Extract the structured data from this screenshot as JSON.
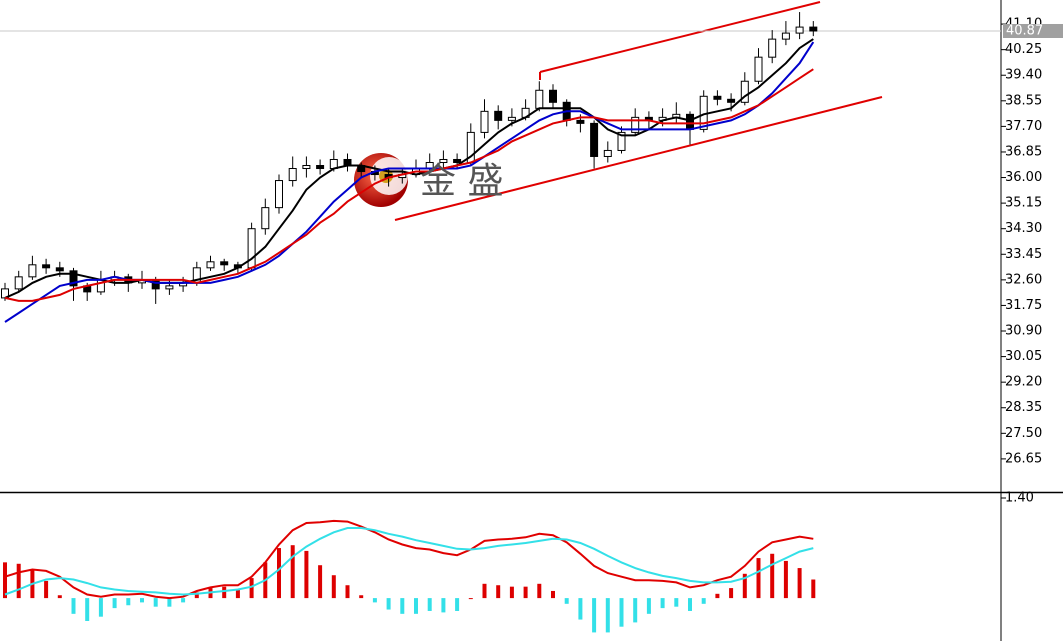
{
  "chart_data": [
    {
      "type": "candlestick",
      "open": [
        32.0,
        32.3,
        32.7,
        33.1,
        33.0,
        32.9,
        32.4,
        32.2,
        32.6,
        32.7,
        32.5,
        32.6,
        32.3,
        32.4,
        32.5,
        33.0,
        33.2,
        33.1,
        33.0,
        34.3,
        35.0,
        35.9,
        36.3,
        36.4,
        36.3,
        36.6,
        36.4,
        36.2,
        36.1,
        36.0,
        36.1,
        36.3,
        36.5,
        36.6,
        36.5,
        37.5,
        38.2,
        37.9,
        38.0,
        38.3,
        38.9,
        38.5,
        37.9,
        37.8,
        36.7,
        36.9,
        37.5,
        38.0,
        37.9,
        38.0,
        38.1,
        37.6,
        38.7,
        38.6,
        38.5,
        39.2,
        40.0,
        40.6,
        40.8,
        41.0
      ],
      "high": [
        32.5,
        32.9,
        33.4,
        33.3,
        33.2,
        33.0,
        32.5,
        32.9,
        32.9,
        32.8,
        32.9,
        32.7,
        32.6,
        32.7,
        33.2,
        33.4,
        33.3,
        33.2,
        34.5,
        35.3,
        36.1,
        36.7,
        36.7,
        36.6,
        36.9,
        36.8,
        36.5,
        36.4,
        36.3,
        36.3,
        36.6,
        36.8,
        36.9,
        36.8,
        37.8,
        38.6,
        38.4,
        38.3,
        38.6,
        39.2,
        39.1,
        38.6,
        38.1,
        37.9,
        37.2,
        37.7,
        38.3,
        38.2,
        38.3,
        38.5,
        38.2,
        38.9,
        38.9,
        38.8,
        39.5,
        40.3,
        40.9,
        41.2,
        41.5,
        41.2
      ],
      "low": [
        31.9,
        32.2,
        32.6,
        32.8,
        32.7,
        31.9,
        31.9,
        32.1,
        32.4,
        32.2,
        32.3,
        31.8,
        32.1,
        32.2,
        32.4,
        32.9,
        32.9,
        32.8,
        32.9,
        34.1,
        34.8,
        35.7,
        36.0,
        36.1,
        36.2,
        36.2,
        36.0,
        35.9,
        35.7,
        35.8,
        36.0,
        36.2,
        36.3,
        36.3,
        36.4,
        37.3,
        37.6,
        37.7,
        37.9,
        38.2,
        38.3,
        37.7,
        37.5,
        36.3,
        36.5,
        36.8,
        37.4,
        37.6,
        37.7,
        37.8,
        37.1,
        37.5,
        38.4,
        38.2,
        38.4,
        39.1,
        39.8,
        40.4,
        40.6,
        40.7
      ],
      "close": [
        32.3,
        32.7,
        33.1,
        33.0,
        32.9,
        32.4,
        32.2,
        32.6,
        32.7,
        32.5,
        32.6,
        32.3,
        32.4,
        32.5,
        33.0,
        33.2,
        33.1,
        33.0,
        34.3,
        35.0,
        35.9,
        36.3,
        36.4,
        36.3,
        36.6,
        36.4,
        36.2,
        36.1,
        36.0,
        36.1,
        36.3,
        36.5,
        36.6,
        36.5,
        37.5,
        38.2,
        37.9,
        38.0,
        38.3,
        38.9,
        38.5,
        37.9,
        37.8,
        36.7,
        36.9,
        37.5,
        38.0,
        37.9,
        38.0,
        38.1,
        37.6,
        38.7,
        38.6,
        38.5,
        39.2,
        40.0,
        40.6,
        40.8,
        41.0,
        40.87
      ],
      "up_color": "#ffffff",
      "down_color": "#000000",
      "candle_stroke": "#000000",
      "series": [
        {
          "color": "#000000",
          "values": [
            32.0,
            32.2,
            32.5,
            32.7,
            32.8,
            32.8,
            32.7,
            32.6,
            32.5,
            32.5,
            32.6,
            32.5,
            32.5,
            32.5,
            32.6,
            32.7,
            32.8,
            33.0,
            33.3,
            33.7,
            34.3,
            34.9,
            35.6,
            36.0,
            36.3,
            36.4,
            36.4,
            36.3,
            36.2,
            36.2,
            36.1,
            36.2,
            36.3,
            36.4,
            36.7,
            37.1,
            37.5,
            37.8,
            38.0,
            38.3,
            38.3,
            38.3,
            38.3,
            38.0,
            37.6,
            37.4,
            37.4,
            37.6,
            37.9,
            38.0,
            37.9,
            38.1,
            38.2,
            38.3,
            38.7,
            39.0,
            39.4,
            39.8,
            40.3,
            40.6
          ]
        },
        {
          "color": "#0000cc",
          "values": [
            31.2,
            31.5,
            31.8,
            32.1,
            32.4,
            32.5,
            32.6,
            32.6,
            32.7,
            32.6,
            32.6,
            32.5,
            32.5,
            32.5,
            32.5,
            32.5,
            32.6,
            32.7,
            32.9,
            33.1,
            33.4,
            33.8,
            34.2,
            34.7,
            35.2,
            35.6,
            36.0,
            36.2,
            36.3,
            36.3,
            36.3,
            36.3,
            36.3,
            36.3,
            36.4,
            36.7,
            37.0,
            37.3,
            37.6,
            37.9,
            38.1,
            38.2,
            38.2,
            38.0,
            37.8,
            37.6,
            37.6,
            37.6,
            37.6,
            37.6,
            37.6,
            37.7,
            37.8,
            37.9,
            38.1,
            38.4,
            38.8,
            39.3,
            39.8,
            40.5
          ]
        },
        {
          "color": "#dd0000",
          "values": [
            32.0,
            31.9,
            31.9,
            32.0,
            32.1,
            32.3,
            32.4,
            32.5,
            32.6,
            32.6,
            32.6,
            32.6,
            32.6,
            32.6,
            32.5,
            32.6,
            32.7,
            32.8,
            33.0,
            33.2,
            33.5,
            33.8,
            34.1,
            34.5,
            34.8,
            35.2,
            35.5,
            35.8,
            36.0,
            36.1,
            36.2,
            36.2,
            36.3,
            36.4,
            36.5,
            36.7,
            36.9,
            37.2,
            37.4,
            37.6,
            37.8,
            37.9,
            38.0,
            38.0,
            37.9,
            37.9,
            37.9,
            37.9,
            37.8,
            37.8,
            37.8,
            37.8,
            37.9,
            38.0,
            38.2,
            38.4,
            38.7,
            39.0,
            39.3,
            39.6
          ]
        }
      ],
      "current_price": 40.87,
      "ylim": [
        25.55,
        41.9
      ],
      "yticks": [
        {
          "value": 41.1,
          "label": "41.10"
        },
        40.25,
        {
          "value": 39.4,
          "label": "39.40"
        },
        38.55,
        {
          "value": 37.7,
          "label": "37.70"
        },
        36.85,
        {
          "value": 36,
          "label": "36.00"
        },
        35.15,
        {
          "value": 34.3,
          "label": "34.30"
        },
        33.45,
        {
          "value": 32.6,
          "label": "32.60"
        },
        31.75,
        {
          "value": 30.9,
          "label": "30.90"
        },
        30.05,
        {
          "value": 29.2,
          "label": "29.20"
        },
        28.35,
        {
          "value": 27.5,
          "label": "27.50"
        },
        26.65
      ],
      "watermark": "金 盛"
    },
    {
      "type": "macd",
      "series": [
        {
          "color": "#e00000",
          "values": [
            0.3,
            0.36,
            0.4,
            0.38,
            0.3,
            0.15,
            0.05,
            0.02,
            0.05,
            0.05,
            0.06,
            0.02,
            0.0,
            0.02,
            0.1,
            0.15,
            0.18,
            0.18,
            0.3,
            0.5,
            0.75,
            0.95,
            1.05,
            1.06,
            1.08,
            1.07,
            1.0,
            0.92,
            0.82,
            0.75,
            0.7,
            0.68,
            0.63,
            0.6,
            0.68,
            0.8,
            0.82,
            0.83,
            0.85,
            0.9,
            0.88,
            0.78,
            0.62,
            0.45,
            0.35,
            0.3,
            0.25,
            0.25,
            0.24,
            0.22,
            0.15,
            0.18,
            0.25,
            0.3,
            0.45,
            0.65,
            0.78,
            0.82,
            0.86,
            0.83
          ]
        },
        {
          "color": "#33e0e8",
          "values": [
            0.05,
            0.12,
            0.2,
            0.26,
            0.28,
            0.26,
            0.21,
            0.15,
            0.12,
            0.1,
            0.09,
            0.08,
            0.06,
            0.05,
            0.06,
            0.08,
            0.1,
            0.12,
            0.16,
            0.25,
            0.4,
            0.58,
            0.72,
            0.83,
            0.92,
            0.98,
            0.98,
            0.95,
            0.9,
            0.86,
            0.81,
            0.77,
            0.73,
            0.69,
            0.68,
            0.7,
            0.73,
            0.75,
            0.77,
            0.8,
            0.83,
            0.82,
            0.77,
            0.69,
            0.59,
            0.5,
            0.42,
            0.36,
            0.31,
            0.28,
            0.24,
            0.22,
            0.22,
            0.23,
            0.28,
            0.37,
            0.47,
            0.56,
            0.65,
            0.7
          ]
        }
      ],
      "histogram": [
        0.5,
        0.48,
        0.4,
        0.24,
        0.04,
        -0.22,
        -0.32,
        -0.26,
        -0.14,
        -0.1,
        -0.06,
        -0.12,
        -0.12,
        -0.06,
        0.08,
        0.14,
        0.16,
        0.12,
        0.28,
        0.5,
        0.7,
        0.74,
        0.66,
        0.46,
        0.32,
        0.18,
        0.04,
        -0.06,
        -0.16,
        -0.22,
        -0.22,
        -0.18,
        -0.2,
        -0.18,
        0.0,
        0.2,
        0.18,
        0.16,
        0.16,
        0.2,
        0.1,
        -0.08,
        -0.3,
        -0.48,
        -0.48,
        -0.4,
        -0.34,
        -0.22,
        -0.14,
        -0.12,
        -0.18,
        -0.08,
        0.06,
        0.14,
        0.34,
        0.56,
        0.62,
        0.52,
        0.42,
        0.26
      ],
      "positive_color": "#dd0000",
      "negative_color": "#33e0e8",
      "ylim": [
        -0.6,
        1.47
      ],
      "yticks": [
        {
          "value": 1.4,
          "label": "1.40"
        }
      ]
    }
  ]
}
